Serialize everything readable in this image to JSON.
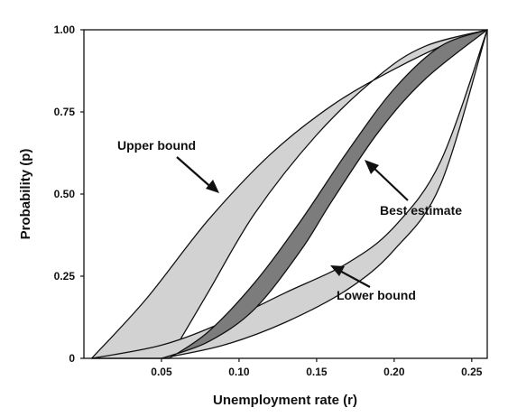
{
  "chart_data": {
    "type": "area",
    "title": "",
    "xlabel": "Unemployment rate (r)",
    "ylabel": "Probability (p)",
    "xlim": [
      0.0,
      0.26
    ],
    "ylim": [
      0,
      1
    ],
    "x_ticks": [
      "0.05",
      "0.10",
      "0.15",
      "0.20",
      "0.25"
    ],
    "x_tick_values": [
      0.05,
      0.1,
      0.15,
      0.2,
      0.25
    ],
    "y_ticks": [
      "0",
      "0.25",
      "0.50",
      "0.75",
      "1.00"
    ],
    "y_tick_values": [
      0,
      0.25,
      0.5,
      0.75,
      1.0
    ],
    "grid": false,
    "legend": "none",
    "colors": {
      "outer_band": "#d2d2d2",
      "best_band": "#7c7c7c",
      "edge": "#111111",
      "text": "#111111"
    },
    "series": [
      {
        "band": "upper-bound",
        "lower_edge": {
          "x": [
            0.005,
            0.04,
            0.08,
            0.12,
            0.16,
            0.2,
            0.24,
            0.26
          ],
          "y": [
            0.0,
            0.18,
            0.42,
            0.62,
            0.77,
            0.88,
            0.97,
            1.0
          ]
        },
        "upper_edge": {
          "x": [
            0.055,
            0.08,
            0.11,
            0.15,
            0.19,
            0.22,
            0.26
          ],
          "y": [
            0.0,
            0.2,
            0.44,
            0.68,
            0.86,
            0.95,
            1.0
          ]
        }
      },
      {
        "band": "best-estimate",
        "lower_edge": {
          "x": [
            0.055,
            0.08,
            0.11,
            0.14,
            0.17,
            0.2,
            0.23,
            0.26
          ],
          "y": [
            0.0,
            0.08,
            0.23,
            0.42,
            0.63,
            0.82,
            0.95,
            1.0
          ]
        },
        "upper_edge": {
          "x": [
            0.05,
            0.08,
            0.11,
            0.14,
            0.16,
            0.19,
            0.22,
            0.26
          ],
          "y": [
            0.0,
            0.05,
            0.15,
            0.33,
            0.48,
            0.69,
            0.85,
            1.0
          ]
        }
      },
      {
        "band": "lower-bound",
        "lower_edge": {
          "x": [
            0.005,
            0.05,
            0.09,
            0.13,
            0.17,
            0.2,
            0.23,
            0.26
          ],
          "y": [
            0.0,
            0.04,
            0.11,
            0.2,
            0.29,
            0.4,
            0.6,
            1.0
          ]
        },
        "upper_edge": {
          "x": [
            0.05,
            0.09,
            0.13,
            0.17,
            0.2,
            0.23,
            0.26
          ],
          "y": [
            0.0,
            0.04,
            0.11,
            0.21,
            0.33,
            0.53,
            1.0
          ]
        }
      }
    ],
    "annotations": [
      {
        "text": "Upper bound",
        "target": "upper-bound"
      },
      {
        "text": "Best estimate",
        "target": "best-estimate"
      },
      {
        "text": "Lower bound",
        "target": "lower-bound"
      }
    ]
  }
}
